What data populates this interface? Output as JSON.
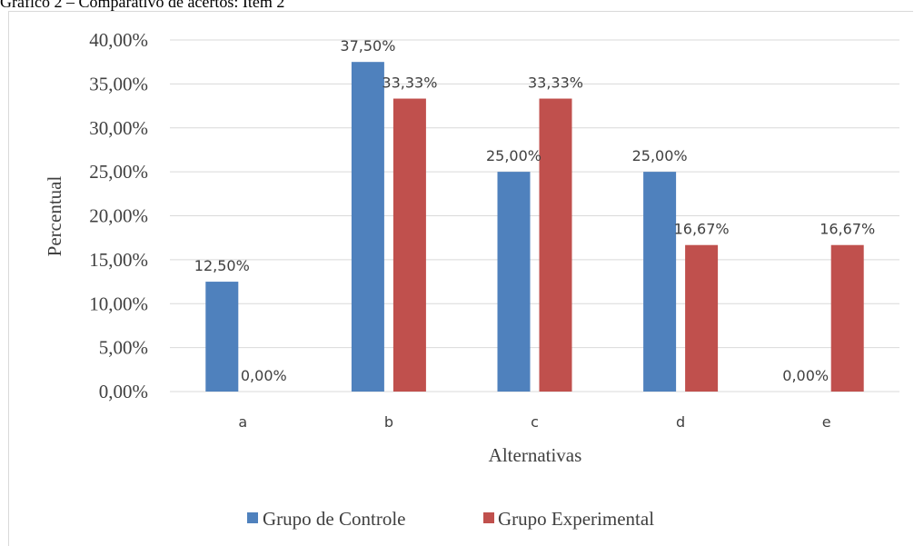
{
  "caption": "Gráfico 2 – Comparativo de acertos: Item 2",
  "chart_data": {
    "type": "bar",
    "categories": [
      "a",
      "b",
      "c",
      "d",
      "e"
    ],
    "series": [
      {
        "name": "Grupo de Controle",
        "color": "#4f81bd",
        "values": [
          12.5,
          37.5,
          25.0,
          25.0,
          0.0
        ],
        "labels": [
          "12,50%",
          "37,50%",
          "25,00%",
          "25,00%",
          "0,00%"
        ]
      },
      {
        "name": "Grupo Experimental",
        "color": "#c0504d",
        "values": [
          0.0,
          33.33,
          33.33,
          16.67,
          16.67
        ],
        "labels": [
          "0,00%",
          "33,33%",
          "33,33%",
          "16,67%",
          "16,67%"
        ]
      }
    ],
    "xlabel": "Alternativas",
    "ylabel": "Percentual",
    "ylim": [
      0,
      40
    ],
    "yticks": [
      "0,00%",
      "5,00%",
      "10,00%",
      "15,00%",
      "20,00%",
      "25,00%",
      "30,00%",
      "35,00%",
      "40,00%"
    ],
    "grid": true,
    "legend_position": "bottom"
  }
}
